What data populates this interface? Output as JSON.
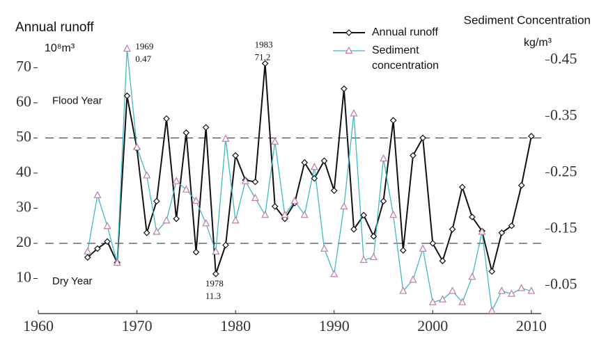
{
  "chart_data": {
    "type": "line",
    "ylabel": "Annual runoff",
    "yunit": "10⁸m³",
    "y2label": "Sediment Concentration",
    "y2unit": "kg/m³",
    "x": [
      1965,
      1966,
      1967,
      1968,
      1969,
      1970,
      1971,
      1972,
      1973,
      1974,
      1975,
      1976,
      1977,
      1978,
      1979,
      1980,
      1981,
      1982,
      1983,
      1984,
      1985,
      1986,
      1987,
      1988,
      1989,
      1990,
      1991,
      1992,
      1993,
      1994,
      1995,
      1996,
      1997,
      1998,
      1999,
      2000,
      2001,
      2002,
      2003,
      2004,
      2005,
      2006,
      2007,
      2008,
      2009,
      2010
    ],
    "series": [
      {
        "name": "Annual runoff",
        "color": "#111111",
        "marker": "diamond",
        "values": [
          16,
          18.5,
          20.5,
          14.5,
          62,
          47,
          23,
          32,
          55.5,
          27,
          51.5,
          17.5,
          53,
          11.3,
          19.5,
          45,
          38,
          37.5,
          71.2,
          30.5,
          27,
          31.5,
          43,
          38.5,
          43.5,
          35,
          64,
          24,
          28,
          22,
          32,
          55,
          18,
          45,
          50,
          20,
          15,
          24,
          36,
          27.5,
          23.5,
          12,
          23,
          25,
          36.5,
          50.5
        ]
      },
      {
        "name": "Sediment concentration",
        "color": "#3fb8c6",
        "marker": "triangle",
        "marker_color": "#c27aa8",
        "axis": "y2",
        "values": [
          0.11,
          0.21,
          0.155,
          0.09,
          0.47,
          0.295,
          0.245,
          0.145,
          0.165,
          0.235,
          0.22,
          0.2,
          0.16,
          0.11,
          0.31,
          0.165,
          0.235,
          0.205,
          0.175,
          0.305,
          0.175,
          0.2,
          0.175,
          0.26,
          0.115,
          0.07,
          0.19,
          0.355,
          0.095,
          0.1,
          0.275,
          0.175,
          0.04,
          0.06,
          0.115,
          0.02,
          0.025,
          0.04,
          0.02,
          0.065,
          0.145,
          0.005,
          0.04,
          0.035,
          0.045,
          0.04
        ]
      }
    ],
    "xlim": [
      1960,
      2011
    ],
    "xticks": [
      1960,
      1970,
      1980,
      1990,
      2000,
      2010
    ],
    "ylim": [
      0,
      77
    ],
    "yticks": [
      10,
      20,
      30,
      40,
      50,
      60,
      70
    ],
    "y2lim": [
      0,
      0.48
    ],
    "y2ticks": [
      0.05,
      0.15,
      0.25,
      0.35,
      0.45
    ],
    "reference_lines": [
      {
        "value": 50,
        "label": "Flood Year"
      },
      {
        "value": 20,
        "label": "Dry Year"
      }
    ],
    "annotations": [
      {
        "year": "1969",
        "value": "0.47"
      },
      {
        "year": "1983",
        "value": "71.2"
      },
      {
        "year": "1978",
        "value": "11.3"
      }
    ],
    "legend": "top-right"
  }
}
